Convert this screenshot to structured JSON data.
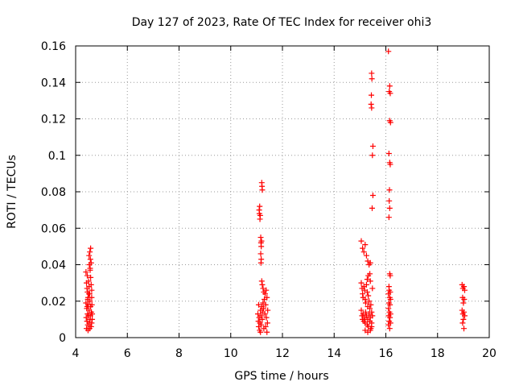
{
  "chart_data": {
    "type": "scatter",
    "title": "Day 127 of 2023, Rate Of TEC Index for receiver ohi3",
    "xlabel": "GPS time / hours",
    "ylabel": "ROTI / TECUs",
    "xlim": [
      4,
      20
    ],
    "ylim": [
      0,
      0.16
    ],
    "xticks": [
      4,
      6,
      8,
      10,
      12,
      14,
      16,
      18,
      20
    ],
    "xtick_labels": [
      "4",
      "6",
      "8",
      "10",
      "12",
      "14",
      "16",
      "18",
      "20"
    ],
    "yticks": [
      0,
      0.02,
      0.04,
      0.06,
      0.08,
      0.1,
      0.12,
      0.14,
      0.16
    ],
    "ytick_labels": [
      "0",
      "0.02",
      "0.04",
      "0.06",
      "0.08",
      "0.1",
      "0.12",
      "0.14",
      "0.16"
    ],
    "grid": true,
    "marker": "+",
    "marker_color": "#ff0000",
    "series": [
      {
        "points": [
          [
            4.4,
            0.036
          ],
          [
            4.42,
            0.03
          ],
          [
            4.44,
            0.027
          ],
          [
            4.45,
            0.034
          ],
          [
            4.46,
            0.025
          ],
          [
            4.48,
            0.022
          ],
          [
            4.5,
            0.031
          ],
          [
            4.52,
            0.028
          ],
          [
            4.54,
            0.024
          ],
          [
            4.56,
            0.037
          ],
          [
            4.58,
            0.033
          ],
          [
            4.6,
            0.029
          ],
          [
            4.4,
            0.019
          ],
          [
            4.43,
            0.016
          ],
          [
            4.46,
            0.013
          ],
          [
            4.49,
            0.018
          ],
          [
            4.52,
            0.015
          ],
          [
            4.55,
            0.02
          ],
          [
            4.58,
            0.017
          ],
          [
            4.61,
            0.014
          ],
          [
            4.41,
            0.011
          ],
          [
            4.44,
            0.009
          ],
          [
            4.47,
            0.007
          ],
          [
            4.5,
            0.012
          ],
          [
            4.53,
            0.008
          ],
          [
            4.56,
            0.01
          ],
          [
            4.59,
            0.006
          ],
          [
            4.62,
            0.008
          ],
          [
            4.42,
            0.005
          ],
          [
            4.48,
            0.004
          ],
          [
            4.54,
            0.005
          ],
          [
            4.6,
            0.006
          ],
          [
            4.52,
            0.045
          ],
          [
            4.55,
            0.047
          ],
          [
            4.57,
            0.043
          ],
          [
            4.58,
            0.049
          ],
          [
            4.6,
            0.041
          ],
          [
            4.56,
            0.038
          ],
          [
            4.53,
            0.04
          ],
          [
            4.62,
            0.022
          ],
          [
            4.63,
            0.018
          ],
          [
            4.64,
            0.013
          ],
          [
            4.62,
            0.026
          ],
          [
            4.64,
            0.01
          ],
          [
            4.47,
            0.021
          ],
          [
            4.51,
            0.024
          ],
          [
            4.45,
            0.017
          ],
          [
            4.57,
            0.012
          ],
          [
            11.05,
            0.013
          ],
          [
            11.07,
            0.009
          ],
          [
            11.08,
            0.006
          ],
          [
            11.1,
            0.011
          ],
          [
            11.12,
            0.004
          ],
          [
            11.13,
            0.008
          ],
          [
            11.15,
            0.015
          ],
          [
            11.17,
            0.012
          ],
          [
            11.18,
            0.007
          ],
          [
            11.2,
            0.017
          ],
          [
            11.22,
            0.01
          ],
          [
            11.23,
            0.014
          ],
          [
            11.25,
            0.019
          ],
          [
            11.27,
            0.016
          ],
          [
            11.28,
            0.005
          ],
          [
            11.3,
            0.021
          ],
          [
            11.32,
            0.013
          ],
          [
            11.33,
            0.024
          ],
          [
            11.35,
            0.018
          ],
          [
            11.37,
            0.026
          ],
          [
            11.38,
            0.011
          ],
          [
            11.4,
            0.022
          ],
          [
            11.42,
            0.008
          ],
          [
            11.43,
            0.015
          ],
          [
            11.1,
            0.07
          ],
          [
            11.12,
            0.072
          ],
          [
            11.14,
            0.067
          ],
          [
            11.11,
            0.068
          ],
          [
            11.13,
            0.065
          ],
          [
            11.16,
            0.055
          ],
          [
            11.17,
            0.052
          ],
          [
            11.18,
            0.05
          ],
          [
            11.19,
            0.053
          ],
          [
            11.16,
            0.046
          ],
          [
            11.18,
            0.043
          ],
          [
            11.17,
            0.041
          ],
          [
            11.2,
            0.085
          ],
          [
            11.21,
            0.083
          ],
          [
            11.22,
            0.081
          ],
          [
            11.2,
            0.031
          ],
          [
            11.22,
            0.029
          ],
          [
            11.25,
            0.027
          ],
          [
            11.28,
            0.025
          ],
          [
            11.15,
            0.003
          ],
          [
            11.35,
            0.006
          ],
          [
            11.4,
            0.003
          ],
          [
            11.08,
            0.018
          ],
          [
            15.05,
            0.053
          ],
          [
            15.1,
            0.049
          ],
          [
            15.15,
            0.047
          ],
          [
            15.2,
            0.051
          ],
          [
            15.25,
            0.045
          ],
          [
            15.3,
            0.042
          ],
          [
            15.35,
            0.04
          ],
          [
            15.4,
            0.041
          ],
          [
            15.32,
            0.034
          ],
          [
            15.28,
            0.032
          ],
          [
            15.38,
            0.035
          ],
          [
            15.05,
            0.03
          ],
          [
            15.08,
            0.027
          ],
          [
            15.1,
            0.024
          ],
          [
            15.12,
            0.022
          ],
          [
            15.15,
            0.028
          ],
          [
            15.18,
            0.026
          ],
          [
            15.2,
            0.021
          ],
          [
            15.22,
            0.019
          ],
          [
            15.25,
            0.029
          ],
          [
            15.28,
            0.025
          ],
          [
            15.3,
            0.017
          ],
          [
            15.32,
            0.023
          ],
          [
            15.35,
            0.02
          ],
          [
            15.38,
            0.016
          ],
          [
            15.4,
            0.031
          ],
          [
            15.42,
            0.018
          ],
          [
            15.45,
            0.014
          ],
          [
            15.48,
            0.027
          ],
          [
            15.05,
            0.015
          ],
          [
            15.08,
            0.012
          ],
          [
            15.1,
            0.01
          ],
          [
            15.12,
            0.013
          ],
          [
            15.15,
            0.009
          ],
          [
            15.18,
            0.011
          ],
          [
            15.2,
            0.008
          ],
          [
            15.22,
            0.014
          ],
          [
            15.25,
            0.012
          ],
          [
            15.28,
            0.007
          ],
          [
            15.3,
            0.01
          ],
          [
            15.32,
            0.006
          ],
          [
            15.35,
            0.013
          ],
          [
            15.38,
            0.009
          ],
          [
            15.4,
            0.011
          ],
          [
            15.42,
            0.005
          ],
          [
            15.45,
            0.008
          ],
          [
            15.48,
            0.012
          ],
          [
            15.2,
            0.004
          ],
          [
            15.3,
            0.003
          ],
          [
            15.4,
            0.004
          ],
          [
            15.45,
            0.006
          ],
          [
            15.45,
            0.145
          ],
          [
            15.46,
            0.142
          ],
          [
            15.44,
            0.133
          ],
          [
            15.43,
            0.128
          ],
          [
            15.45,
            0.126
          ],
          [
            15.5,
            0.105
          ],
          [
            15.48,
            0.1
          ],
          [
            15.5,
            0.078
          ],
          [
            15.47,
            0.071
          ],
          [
            16.1,
            0.157
          ],
          [
            16.15,
            0.138
          ],
          [
            16.13,
            0.135
          ],
          [
            16.17,
            0.134
          ],
          [
            16.15,
            0.119
          ],
          [
            16.18,
            0.118
          ],
          [
            16.12,
            0.101
          ],
          [
            16.15,
            0.096
          ],
          [
            16.17,
            0.095
          ],
          [
            16.14,
            0.081
          ],
          [
            16.13,
            0.075
          ],
          [
            16.15,
            0.071
          ],
          [
            16.12,
            0.066
          ],
          [
            16.15,
            0.035
          ],
          [
            16.17,
            0.034
          ],
          [
            16.13,
            0.026
          ],
          [
            16.1,
            0.024
          ],
          [
            16.15,
            0.022
          ],
          [
            16.18,
            0.021
          ],
          [
            16.12,
            0.019
          ],
          [
            16.16,
            0.018
          ],
          [
            16.1,
            0.016
          ],
          [
            16.14,
            0.014
          ],
          [
            16.18,
            0.013
          ],
          [
            16.11,
            0.012
          ],
          [
            16.16,
            0.011
          ],
          [
            16.13,
            0.009
          ],
          [
            16.18,
            0.008
          ],
          [
            16.1,
            0.007
          ],
          [
            16.15,
            0.005
          ],
          [
            16.12,
            0.028
          ],
          [
            16.17,
            0.025
          ],
          [
            18.95,
            0.029
          ],
          [
            19.02,
            0.028
          ],
          [
            18.98,
            0.027
          ],
          [
            19.05,
            0.026
          ],
          [
            18.97,
            0.022
          ],
          [
            19.03,
            0.021
          ],
          [
            19.0,
            0.019
          ],
          [
            18.95,
            0.015
          ],
          [
            19.02,
            0.014
          ],
          [
            18.98,
            0.013
          ],
          [
            19.05,
            0.012
          ],
          [
            19.0,
            0.01
          ],
          [
            18.97,
            0.008
          ],
          [
            19.02,
            0.005
          ]
        ]
      }
    ]
  }
}
